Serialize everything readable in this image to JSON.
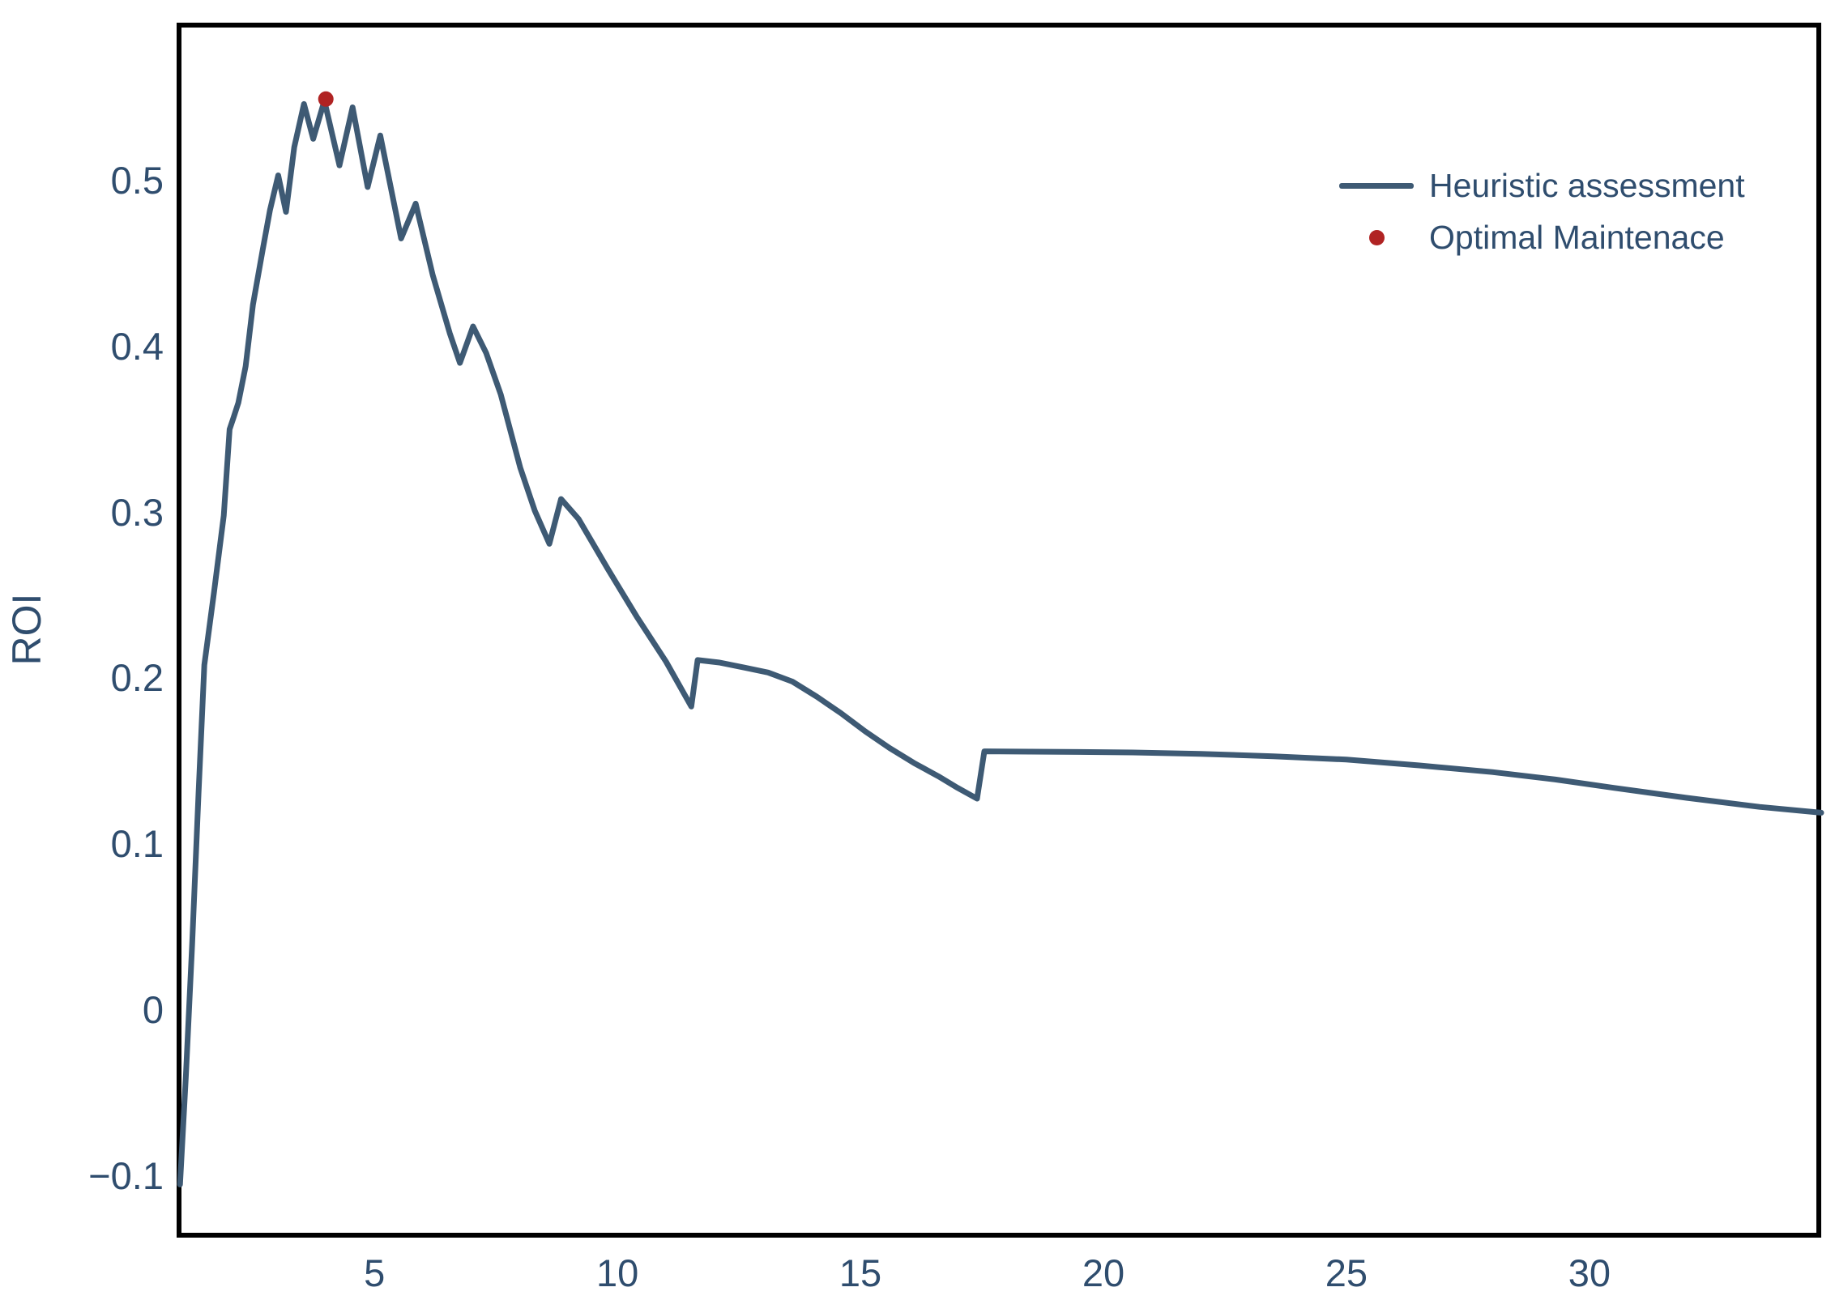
{
  "colors": {
    "line": "#3e5a74",
    "marker": "#b02323",
    "text": "#2f4d6e",
    "spine": "#000000",
    "background": "#ffffff"
  },
  "chart_data": {
    "type": "line",
    "title": "",
    "xlabel": "",
    "ylabel": "ROI",
    "grid": false,
    "legend_position": "upper-right-inside",
    "xlim": [
      0.93,
      34.77
    ],
    "ylim": [
      -0.137,
      0.595
    ],
    "x_ticks": [
      "5",
      "10",
      "15",
      "20",
      "25",
      "30"
    ],
    "x_tick_values": [
      5,
      10,
      15,
      20,
      25,
      30
    ],
    "y_ticks": [
      "0.5",
      "0.4",
      "0.3",
      "0.2",
      "0.1",
      "0",
      "−0.1"
    ],
    "y_tick_values": [
      0.5,
      0.4,
      0.3,
      0.2,
      0.1,
      0,
      -0.1
    ],
    "series": [
      {
        "name": "Heuristic assessment",
        "type": "line",
        "color": "#3e5a74",
        "points": [
          [
            1.0,
            -0.105
          ],
          [
            1.12,
            -0.04
          ],
          [
            1.25,
            0.04
          ],
          [
            1.38,
            0.13
          ],
          [
            1.5,
            0.208
          ],
          [
            1.7,
            0.252
          ],
          [
            1.9,
            0.298
          ],
          [
            2.02,
            0.35
          ],
          [
            2.1,
            0.357
          ],
          [
            2.2,
            0.366
          ],
          [
            2.35,
            0.388
          ],
          [
            2.5,
            0.425
          ],
          [
            2.7,
            0.458
          ],
          [
            2.85,
            0.482
          ],
          [
            3.02,
            0.503
          ],
          [
            3.18,
            0.481
          ],
          [
            3.35,
            0.52
          ],
          [
            3.55,
            0.546
          ],
          [
            3.74,
            0.525
          ],
          [
            3.97,
            0.548
          ],
          [
            4.28,
            0.509
          ],
          [
            4.55,
            0.544
          ],
          [
            4.86,
            0.496
          ],
          [
            5.12,
            0.527
          ],
          [
            5.55,
            0.465
          ],
          [
            5.85,
            0.486
          ],
          [
            6.2,
            0.443
          ],
          [
            6.55,
            0.408
          ],
          [
            6.76,
            0.39
          ],
          [
            7.03,
            0.412
          ],
          [
            7.3,
            0.396
          ],
          [
            7.6,
            0.371
          ],
          [
            8.0,
            0.327
          ],
          [
            8.3,
            0.301
          ],
          [
            8.6,
            0.281
          ],
          [
            8.84,
            0.308
          ],
          [
            9.2,
            0.296
          ],
          [
            9.8,
            0.266
          ],
          [
            10.4,
            0.237
          ],
          [
            11.0,
            0.21
          ],
          [
            11.52,
            0.183
          ],
          [
            11.65,
            0.211
          ],
          [
            12.1,
            0.2095
          ],
          [
            12.6,
            0.2065
          ],
          [
            13.1,
            0.2035
          ],
          [
            13.6,
            0.198
          ],
          [
            14.1,
            0.189
          ],
          [
            14.6,
            0.179
          ],
          [
            15.1,
            0.168
          ],
          [
            15.6,
            0.158
          ],
          [
            16.1,
            0.149
          ],
          [
            16.6,
            0.141
          ],
          [
            17.0,
            0.134
          ],
          [
            17.4,
            0.1275
          ],
          [
            17.55,
            0.156
          ],
          [
            18.5,
            0.1558
          ],
          [
            19.5,
            0.1556
          ],
          [
            20.6,
            0.1553
          ],
          [
            22.0,
            0.1545
          ],
          [
            23.5,
            0.153
          ],
          [
            25.0,
            0.151
          ],
          [
            26.5,
            0.1475
          ],
          [
            28.0,
            0.1435
          ],
          [
            29.3,
            0.139
          ],
          [
            30.5,
            0.134
          ],
          [
            32.0,
            0.128
          ],
          [
            33.5,
            0.1225
          ],
          [
            34.77,
            0.119
          ]
        ]
      },
      {
        "name": "Optimal Maintenace",
        "type": "scatter",
        "color": "#b02323",
        "points": [
          [
            4.0,
            0.549
          ]
        ]
      }
    ]
  }
}
